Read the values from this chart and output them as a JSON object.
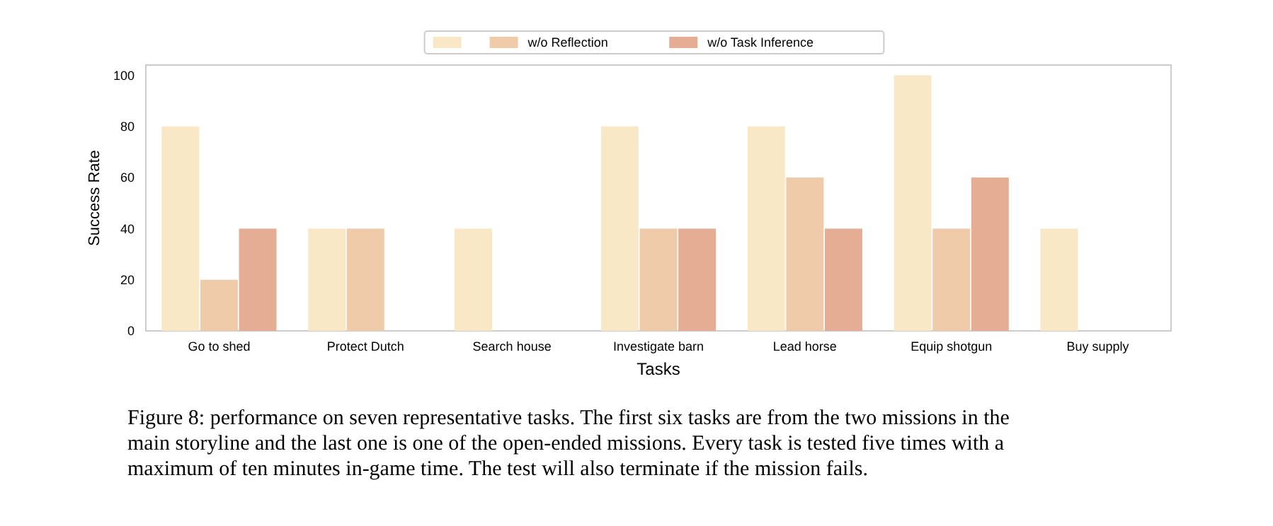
{
  "chart_data": {
    "type": "bar",
    "xlabel": "Tasks",
    "ylabel": "Success Rate",
    "categories": [
      "Go to shed",
      "Protect Dutch",
      "Search house",
      "Investigate barn",
      "Lead horse",
      "Equip shotgun",
      "Buy supply"
    ],
    "series": [
      {
        "color": "#f9e8c6",
        "values": [
          80,
          40,
          40,
          80,
          80,
          100,
          40
        ]
      },
      {
        "name": "w/o Reflection",
        "color": "#f0cbaa",
        "values": [
          20,
          40,
          0,
          40,
          60,
          40,
          0
        ]
      },
      {
        "name": "w/o Task Inference",
        "color": "#e5ae94",
        "values": [
          40,
          0,
          0,
          40,
          40,
          60,
          0
        ]
      }
    ],
    "ylim": [
      0,
      104
    ],
    "yticks": [
      0,
      20,
      40,
      60,
      80,
      100
    ],
    "grid": false,
    "legend": "top",
    "annotations": [
      "Figure 8: performance on seven representative tasks. The first six tasks are from the two missions in the main storyline and the last one is one of the open-ended missions. Every task is tested five times with a maximum of ten minutes in-game time. The test will also terminate if the mission fails."
    ]
  }
}
